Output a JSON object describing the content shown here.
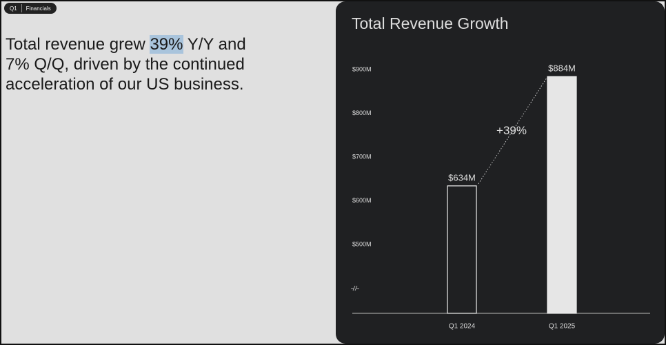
{
  "tag": [
    "Q1",
    "Financials"
  ],
  "headline": {
    "lines": [
      [
        "Total revenue grew ",
        "39%",
        " Y/Y and"
      ],
      [
        "7% Q/Q, driven by the continued"
      ],
      [
        "acceleration of our US business."
      ]
    ]
  },
  "chart_data": {
    "type": "bar",
    "title": "Total Revenue Growth",
    "categories": [
      "Q1 2024",
      "Q1 2025"
    ],
    "values": [
      634,
      884
    ],
    "value_labels": [
      "$634M",
      "$884M"
    ],
    "ylim": [
      500,
      900
    ],
    "yticks": [
      {
        "value": 500,
        "label": "$500M"
      },
      {
        "value": 600,
        "label": "$600M"
      },
      {
        "value": 700,
        "label": "$700M"
      },
      {
        "value": 800,
        "label": "$800M"
      },
      {
        "value": 900,
        "label": "$900M"
      }
    ],
    "annotation": "+39%",
    "colors": [
      "#1f2022",
      "#e6e6e6"
    ]
  }
}
